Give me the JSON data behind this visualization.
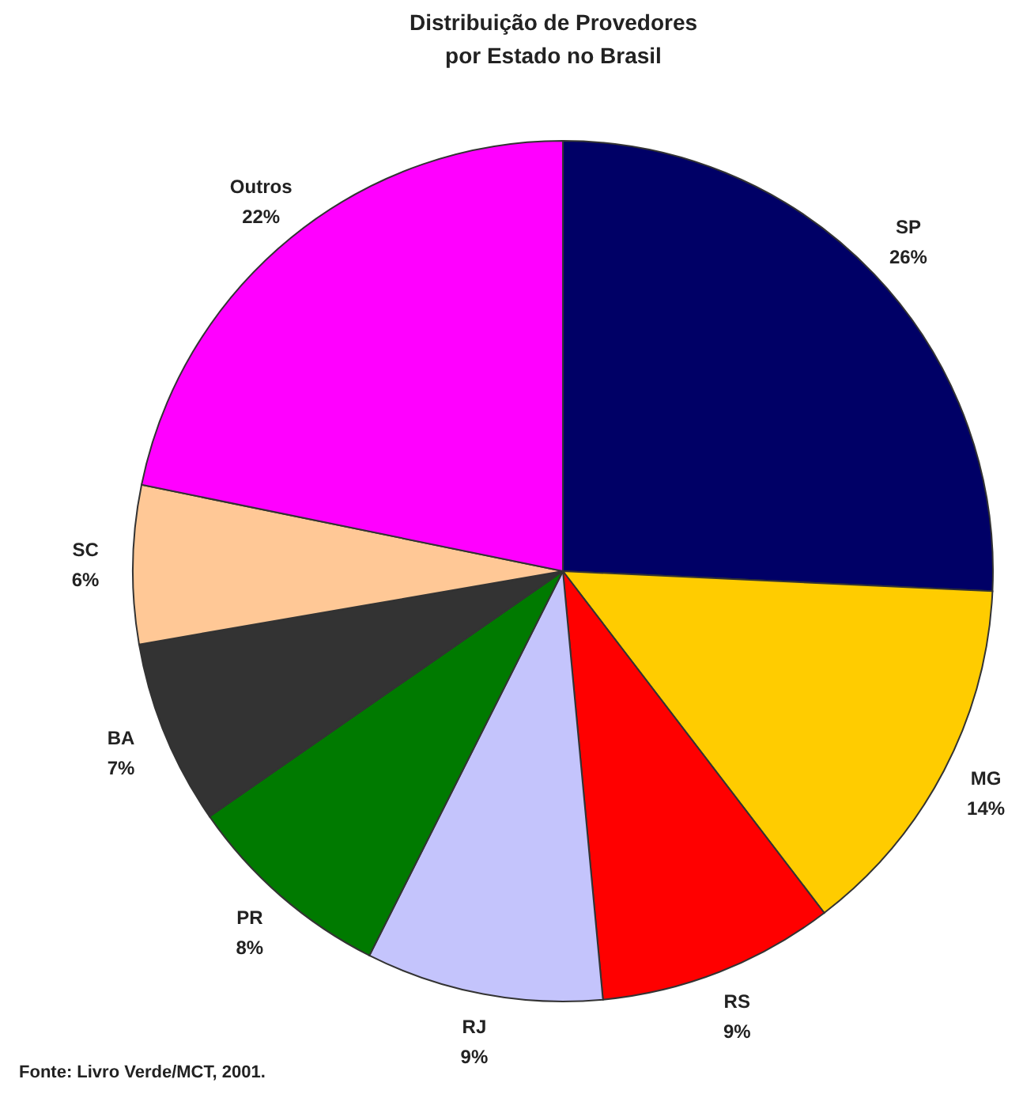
{
  "chart_data": {
    "type": "pie",
    "title": "Distribuição de Provedores\npor Estado no Brasil",
    "categories": [
      "SP",
      "MG",
      "RS",
      "RJ",
      "PR",
      "BA",
      "SC",
      "Outros"
    ],
    "values": [
      26,
      14,
      9,
      9,
      8,
      7,
      6,
      22
    ],
    "value_labels": [
      "26%",
      "14%",
      "9%",
      "9%",
      "8%",
      "7%",
      "6%",
      "22%"
    ],
    "colors": [
      "#000066",
      "#ffcc00",
      "#ff0000",
      "#c4c4fc",
      "#007a00",
      "#333333",
      "#ffc896",
      "#ff00ff"
    ],
    "legend": false,
    "annotations": [
      "Fonte: Livro Verde/MCT, 2001."
    ]
  }
}
